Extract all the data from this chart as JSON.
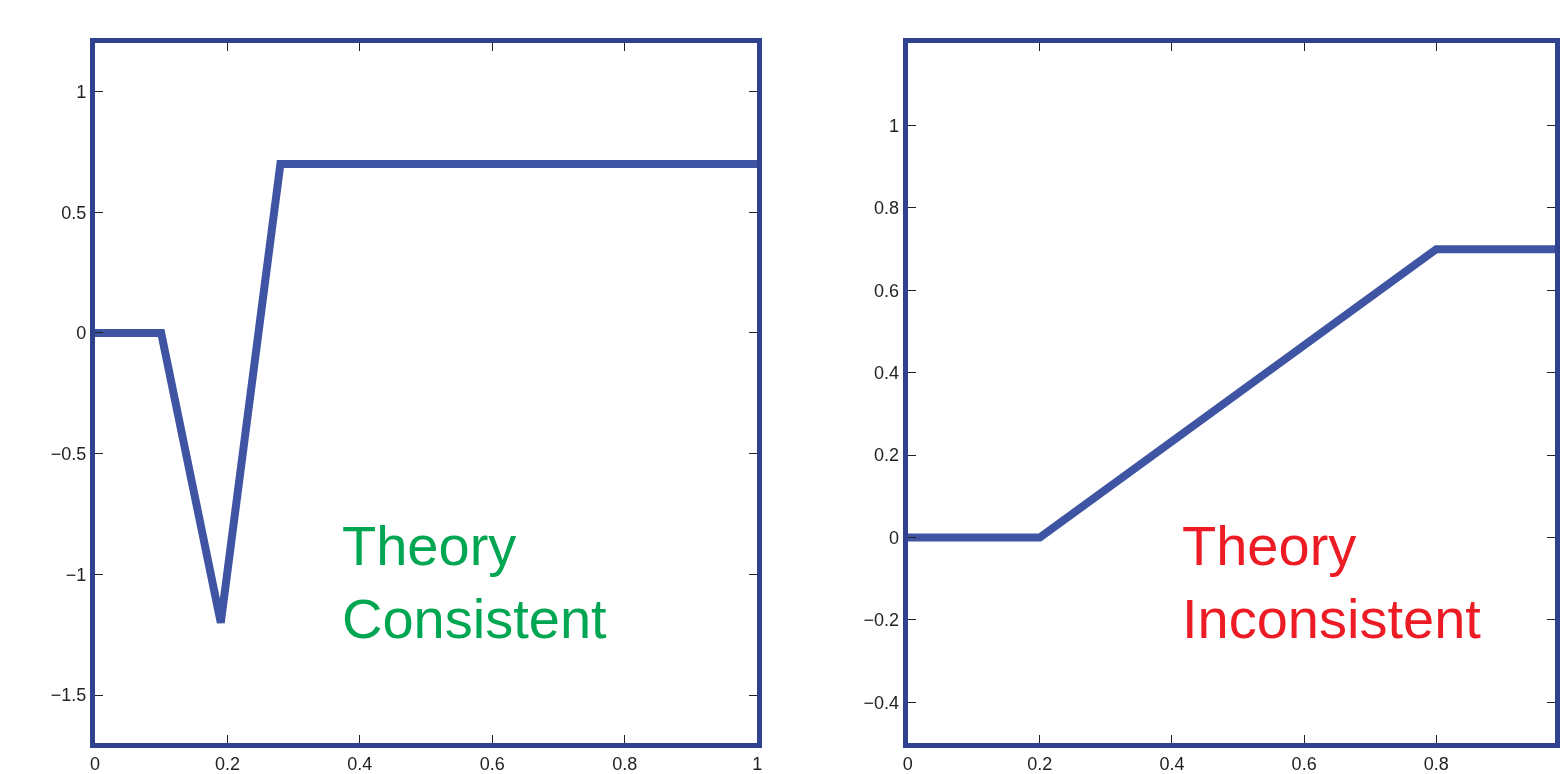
{
  "chart_data": [
    {
      "type": "line",
      "x": [
        0,
        0.1,
        0.19,
        0.28,
        1
      ],
      "series": [
        {
          "color": "#3f54a3",
          "values": [
            0,
            0,
            -1.2,
            0.7,
            0.7
          ]
        }
      ],
      "xlim": [
        0,
        1
      ],
      "xticks": [
        0,
        0.2,
        0.4,
        0.6,
        0.8,
        1
      ],
      "ylim": [
        -1.7,
        1.2
      ],
      "yticks": [
        1,
        0.5,
        0,
        -0.5,
        -1,
        -1.5
      ],
      "annotations": [
        "Theory\nConsistent"
      ],
      "marker": "none",
      "line_style": "solid"
    },
    {
      "type": "line",
      "x": [
        0,
        0.2,
        0.8,
        0.98
      ],
      "series": [
        {
          "color": "#3f54a3",
          "values": [
            0,
            0,
            0.7,
            0.7
          ]
        }
      ],
      "xlim": [
        0,
        0.98
      ],
      "xticks": [
        0,
        0.2,
        0.4,
        0.6,
        0.8
      ],
      "ylim": [
        -0.5,
        1.2
      ],
      "yticks": [
        -0.4,
        -0.2,
        0,
        0.2,
        0.4,
        0.6,
        0.8,
        1
      ],
      "annotations": [
        "Theory\nInconsistent"
      ],
      "marker": "none",
      "line_style": "solid"
    }
  ]
}
